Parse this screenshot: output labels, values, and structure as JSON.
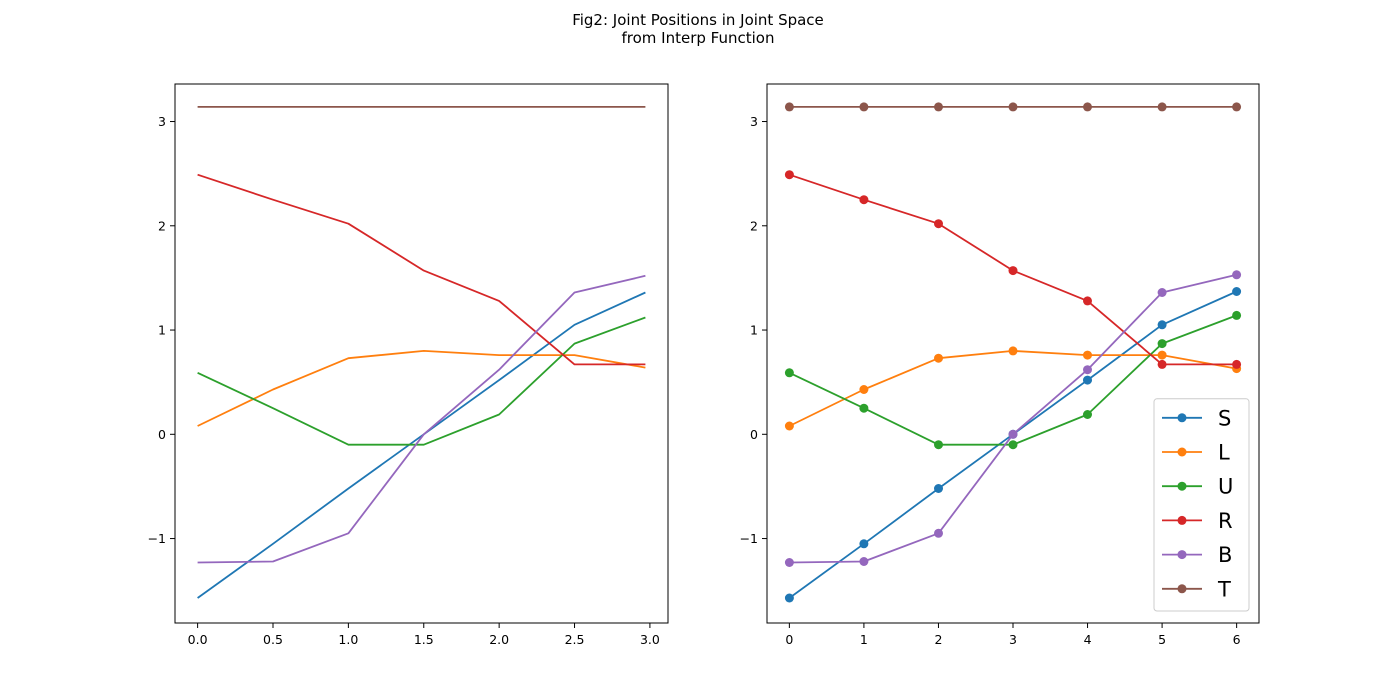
{
  "figure": {
    "title_line1": "Fig2: Joint Positions in Joint Space",
    "title_line2": "from Interp Function"
  },
  "chart_data": [
    {
      "type": "line",
      "markers": false,
      "x": [
        0.0,
        0.5,
        1.0,
        1.5,
        2.0,
        2.5,
        2.97
      ],
      "xlim": [
        -0.15,
        3.12
      ],
      "ylim": [
        -1.81,
        3.36
      ],
      "xticks": [
        0.0,
        0.5,
        1.0,
        1.5,
        2.0,
        2.5,
        3.0
      ],
      "xtick_labels": [
        "0.0",
        "0.5",
        "1.0",
        "1.5",
        "2.0",
        "2.5",
        "3.0"
      ],
      "yticks": [
        -1,
        0,
        1,
        2,
        3
      ],
      "ytick_labels": [
        "−1",
        "0",
        "1",
        "2",
        "3"
      ],
      "grid": false,
      "series": [
        {
          "color": "#1f77b4",
          "values": [
            -1.57,
            -1.05,
            -0.52,
            0.0,
            0.52,
            1.05,
            1.36
          ]
        },
        {
          "color": "#ff7f0e",
          "values": [
            0.08,
            0.43,
            0.73,
            0.8,
            0.76,
            0.76,
            0.64
          ]
        },
        {
          "color": "#2ca02c",
          "values": [
            0.59,
            0.25,
            -0.1,
            -0.1,
            0.19,
            0.87,
            1.12
          ]
        },
        {
          "color": "#d62728",
          "values": [
            2.49,
            2.25,
            2.02,
            1.57,
            1.28,
            0.67,
            0.67
          ]
        },
        {
          "color": "#9467bd",
          "values": [
            -1.23,
            -1.22,
            -0.95,
            0.0,
            0.62,
            1.36,
            1.52
          ]
        },
        {
          "color": "#8c564b",
          "values": [
            3.14,
            3.14,
            3.14,
            3.14,
            3.14,
            3.14,
            3.14
          ]
        }
      ]
    },
    {
      "type": "line",
      "markers": true,
      "x": [
        0,
        1,
        2,
        3,
        4,
        5,
        6
      ],
      "xlim": [
        -0.3,
        6.3
      ],
      "ylim": [
        -1.81,
        3.36
      ],
      "xticks": [
        0,
        1,
        2,
        3,
        4,
        5,
        6
      ],
      "xtick_labels": [
        "0",
        "1",
        "2",
        "3",
        "4",
        "5",
        "6"
      ],
      "yticks": [
        -1,
        0,
        1,
        2,
        3
      ],
      "ytick_labels": [
        "−1",
        "0",
        "1",
        "2",
        "3"
      ],
      "grid": false,
      "legend": "lower-right",
      "series": [
        {
          "name": "S",
          "color": "#1f77b4",
          "values": [
            -1.57,
            -1.05,
            -0.52,
            0.0,
            0.52,
            1.05,
            1.37
          ]
        },
        {
          "name": "L",
          "color": "#ff7f0e",
          "values": [
            0.08,
            0.43,
            0.73,
            0.8,
            0.76,
            0.76,
            0.63
          ]
        },
        {
          "name": "U",
          "color": "#2ca02c",
          "values": [
            0.59,
            0.25,
            -0.1,
            -0.1,
            0.19,
            0.87,
            1.14
          ]
        },
        {
          "name": "R",
          "color": "#d62728",
          "values": [
            2.49,
            2.25,
            2.02,
            1.57,
            1.28,
            0.67,
            0.67
          ]
        },
        {
          "name": "B",
          "color": "#9467bd",
          "values": [
            -1.23,
            -1.22,
            -0.95,
            0.0,
            0.62,
            1.36,
            1.53
          ]
        },
        {
          "name": "T",
          "color": "#8c564b",
          "values": [
            3.14,
            3.14,
            3.14,
            3.14,
            3.14,
            3.14,
            3.14
          ]
        }
      ]
    }
  ]
}
